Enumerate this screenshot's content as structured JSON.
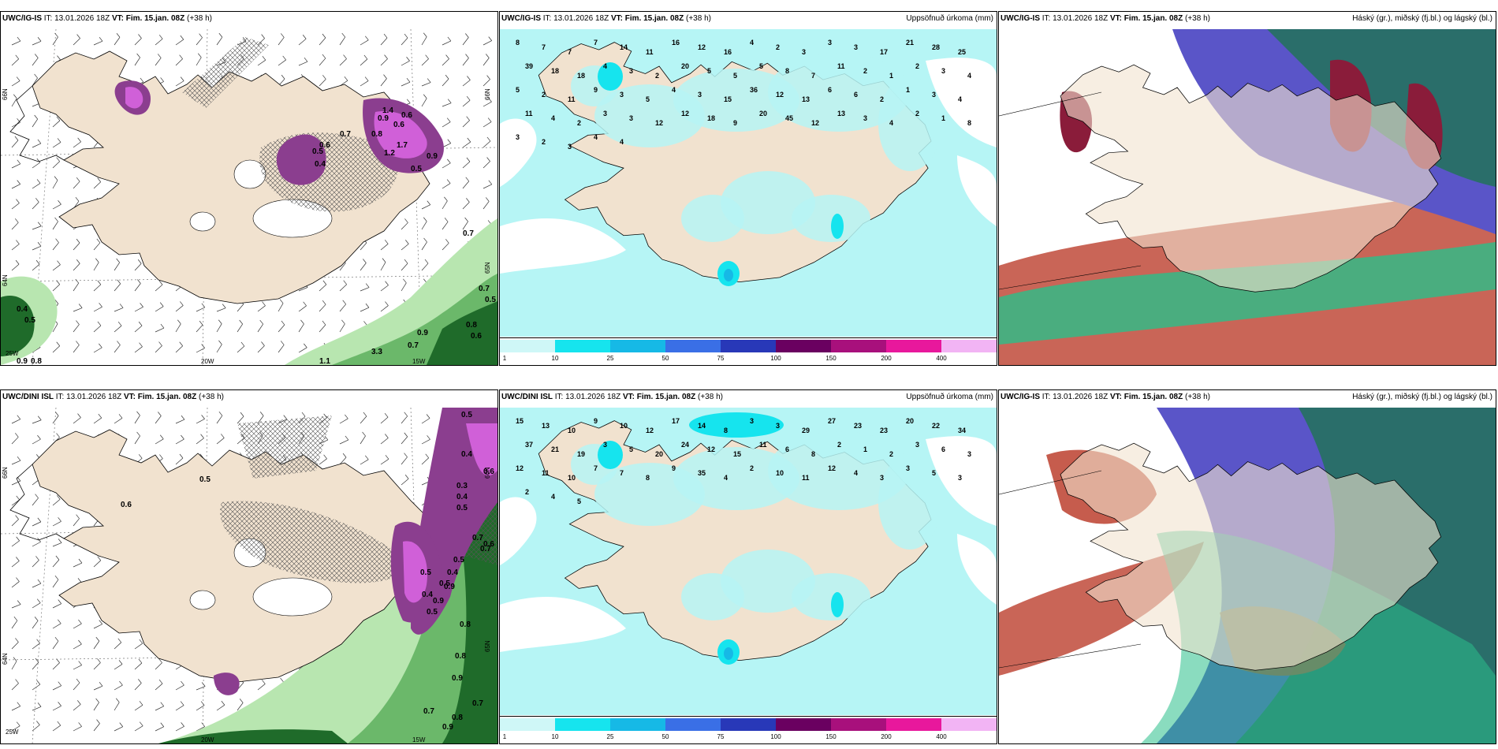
{
  "rows": [
    {
      "left_panel": {
        "model": "UWC/IG-IS",
        "it_label": "IT:",
        "it_value": "13.01.2026 18Z",
        "vt_label": "VT:",
        "vt_value": "Fim. 15.jan. 08Z",
        "lead": "(+38 h)",
        "lat_labels": [
          "66N",
          "65N",
          "64N"
        ],
        "lon_labels": [
          "25W",
          "20W",
          "15W"
        ],
        "values": [
          "0.4",
          "0.5",
          "0.6",
          "0.7",
          "0.8",
          "0.9",
          "1.2",
          "1.7",
          "0.6",
          "0.5",
          "0.9",
          "0.7",
          "0.7",
          "0.5",
          "0.8",
          "0.6",
          "0.9",
          "0.7",
          "1.1",
          "3.3",
          "0.4",
          "0.5",
          "0.9",
          "0.8",
          "1.4",
          "0.6"
        ]
      },
      "mid_panel": {
        "model": "UWC/IG-IS",
        "it_label": "IT:",
        "it_value": "13.01.2026 18Z",
        "vt_label": "VT:",
        "vt_value": "Fim. 15.jan. 08Z",
        "lead": "(+38 h)",
        "right_title": "Uppsöfnuð úrkoma (mm)",
        "values": [
          "8",
          "7",
          "7",
          "7",
          "14",
          "11",
          "16",
          "12",
          "16",
          "4",
          "2",
          "3",
          "3",
          "3",
          "17",
          "21",
          "28",
          "25",
          "39",
          "18",
          "18",
          "4",
          "3",
          "2",
          "20",
          "5",
          "5",
          "5",
          "8",
          "7",
          "11",
          "2",
          "1",
          "2",
          "3",
          "4",
          "5",
          "2",
          "11",
          "9",
          "3",
          "5",
          "4",
          "3",
          "15",
          "36",
          "12",
          "13",
          "6",
          "6",
          "2",
          "1",
          "3",
          "4",
          "11",
          "4",
          "2",
          "3",
          "3",
          "12",
          "12",
          "18",
          "9",
          "20",
          "45",
          "12",
          "13",
          "3",
          "4",
          "2",
          "1",
          "8",
          "3",
          "2",
          "3",
          "4",
          "4"
        ]
      },
      "right_panel": {
        "model": "UWC/IG-IS",
        "it_label": "IT:",
        "it_value": "13.01.2026 18Z",
        "vt_label": "VT:",
        "vt_value": "Fim. 15.jan. 08Z",
        "lead": "(+38 h)",
        "right_title": "Háský (gr.), miðský (fj.bl.) og lágský (bl.)"
      }
    },
    {
      "left_panel": {
        "model": "UWC/DINI ISL",
        "it_label": "IT:",
        "it_value": "13.01.2026 18Z",
        "vt_label": "VT:",
        "vt_value": "Fim. 15.jan. 08Z",
        "lead": "(+38 h)",
        "lat_labels": [
          "66N",
          "65N",
          "64N"
        ],
        "lon_labels": [
          "25W",
          "20W",
          "15W"
        ],
        "values": [
          "0.5",
          "0.4",
          "0.6",
          "0.3",
          "0.4",
          "0.5",
          "0.7",
          "0.7",
          "0.5",
          "0.4",
          "0.5",
          "0.8",
          "0.8",
          "0.9",
          "0.7",
          "0.9",
          "0.6",
          "0.5",
          "0.4",
          "0.5",
          "0.9",
          "0.7",
          "0.8",
          "0.5",
          "0.6",
          "0.9"
        ]
      },
      "mid_panel": {
        "model": "UWC/DINI ISL",
        "it_label": "IT:",
        "it_value": "13.01.2026 18Z",
        "vt_label": "VT:",
        "vt_value": "Fim. 15.jan. 08Z",
        "lead": "(+38 h)",
        "right_title": "Uppsöfnuð úrkoma (mm)",
        "values": [
          "15",
          "13",
          "10",
          "9",
          "10",
          "12",
          "17",
          "14",
          "8",
          "3",
          "3",
          "29",
          "27",
          "23",
          "23",
          "20",
          "22",
          "34",
          "37",
          "21",
          "19",
          "3",
          "5",
          "20",
          "24",
          "12",
          "15",
          "11",
          "6",
          "8",
          "2",
          "1",
          "2",
          "3",
          "6",
          "3",
          "12",
          "11",
          "10",
          "7",
          "7",
          "8",
          "9",
          "35",
          "4",
          "2",
          "10",
          "11",
          "12",
          "4",
          "3",
          "3",
          "5",
          "3",
          "2",
          "4",
          "5"
        ]
      },
      "right_panel": {
        "model": "UWC/IG-IS",
        "it_label": "IT:",
        "it_value": "13.01.2026 18Z",
        "vt_label": "VT:",
        "vt_value": "Fim. 15.jan. 08Z",
        "lead": "(+38 h)",
        "right_title": "Háský (gr.), miðský (fj.bl.) og lágský (bl.)"
      }
    }
  ],
  "colorbar": {
    "ticks": [
      "1",
      "10",
      "25",
      "50",
      "75",
      "100",
      "150",
      "200",
      "400"
    ],
    "colors": [
      "#cff7f7",
      "#16e4ee",
      "#16b9e6",
      "#3a6fe6",
      "#2838b8",
      "#6a0060",
      "#a8107c",
      "#e8189c",
      "#f2b4f4"
    ]
  },
  "colors": {
    "land": "#f1e2cf",
    "sea_precip": "#b6f5f5",
    "snow_purple": "#8b3e8f",
    "snow_pink": "#d060d8",
    "rain_green_light": "#b8e6b0",
    "rain_green_dark": "#1f6b2a",
    "hatch": "#555555",
    "cloud_high": "#8a1c3a",
    "cloud_mid": "#5a55c8",
    "cloud_low": "#2a6e6a",
    "cloud_red": "#c04a3a"
  }
}
